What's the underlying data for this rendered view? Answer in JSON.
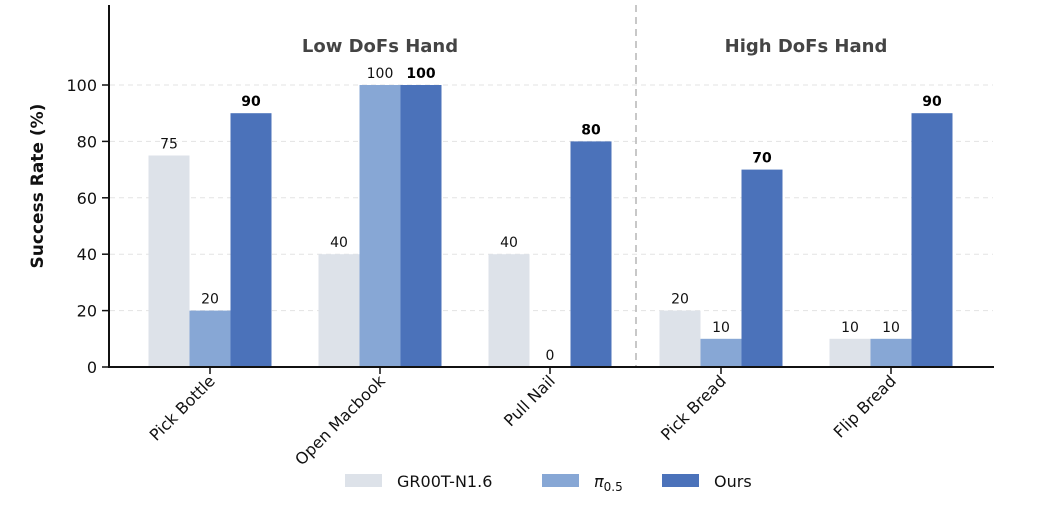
{
  "chart_data": {
    "type": "bar",
    "title": "",
    "xlabel": "",
    "ylabel": "Success Rate (%)",
    "ylim": [
      0,
      128
    ],
    "yticks": [
      "0",
      "20",
      "40",
      "60",
      "80",
      "100"
    ],
    "grid": true,
    "categories": [
      "Pick Bottle",
      "Open Macbook",
      "Pull Nail",
      "Pick Bread",
      "Flip Bread"
    ],
    "groups": [
      {
        "title": "Low DoFs Hand",
        "categories": [
          "Pick Bottle",
          "Open Macbook",
          "Pull Nail"
        ]
      },
      {
        "title": "High DoFs Hand",
        "categories": [
          "Pick Bread",
          "Flip Bread"
        ]
      }
    ],
    "series": [
      {
        "name": "GR00T-N1.6",
        "color": "#dde2e9",
        "values": [
          75,
          40,
          40,
          20,
          10
        ],
        "labels": [
          "75",
          "40",
          "40",
          "20",
          "10"
        ]
      },
      {
        "name": "π0.5",
        "legend_main": "π",
        "legend_sub": "0.5",
        "color": "#87a7d5",
        "values": [
          20,
          100,
          0,
          10,
          10
        ],
        "labels": [
          "20",
          "100",
          "0",
          "10",
          "10"
        ]
      },
      {
        "name": "Ours",
        "color": "#4b72ba",
        "values": [
          90,
          100,
          80,
          70,
          90
        ],
        "labels": [
          "90",
          "100",
          "80",
          "70",
          "90"
        ],
        "bold_labels": true
      }
    ],
    "legend_position": "bottom-center"
  }
}
